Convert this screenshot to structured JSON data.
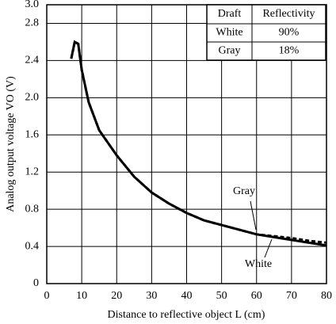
{
  "chart_data": {
    "type": "line",
    "xlabel": "Distance to reflective object L (cm)",
    "ylabel": "Analog output voltage VO (V)",
    "x": [
      7,
      8,
      9,
      10,
      12,
      15,
      20,
      25,
      30,
      35,
      40,
      45,
      50,
      55,
      60,
      65,
      70,
      75,
      80
    ],
    "series": [
      {
        "name": "White",
        "color": "#000000",
        "values": [
          2.42,
          2.6,
          2.58,
          2.3,
          1.95,
          1.65,
          1.38,
          1.15,
          0.98,
          0.86,
          0.76,
          0.68,
          0.63,
          0.58,
          0.53,
          0.5,
          0.47,
          0.44,
          0.41
        ]
      },
      {
        "name": "Gray",
        "color": "#000000",
        "values": [
          2.42,
          2.6,
          2.58,
          2.3,
          1.95,
          1.65,
          1.38,
          1.15,
          0.98,
          0.86,
          0.76,
          0.68,
          0.63,
          0.58,
          0.53,
          0.51,
          0.49,
          0.46,
          0.44
        ]
      }
    ],
    "xlim": [
      0,
      80
    ],
    "xticks": [
      0,
      10,
      20,
      30,
      40,
      50,
      60,
      70,
      80
    ],
    "ylim": [
      0,
      3
    ],
    "yticks": [
      0,
      0.4,
      0.8,
      1.2,
      1.6,
      {
        "value": 2,
        "label": "2.0"
      },
      2.4,
      2.8,
      {
        "value": 3,
        "label": "3.0"
      }
    ],
    "grid": true,
    "table": {
      "header": [
        "Draft",
        "Reflectivity"
      ],
      "rows": [
        [
          "White",
          "90%"
        ],
        [
          "Gray",
          "18%"
        ]
      ]
    }
  }
}
